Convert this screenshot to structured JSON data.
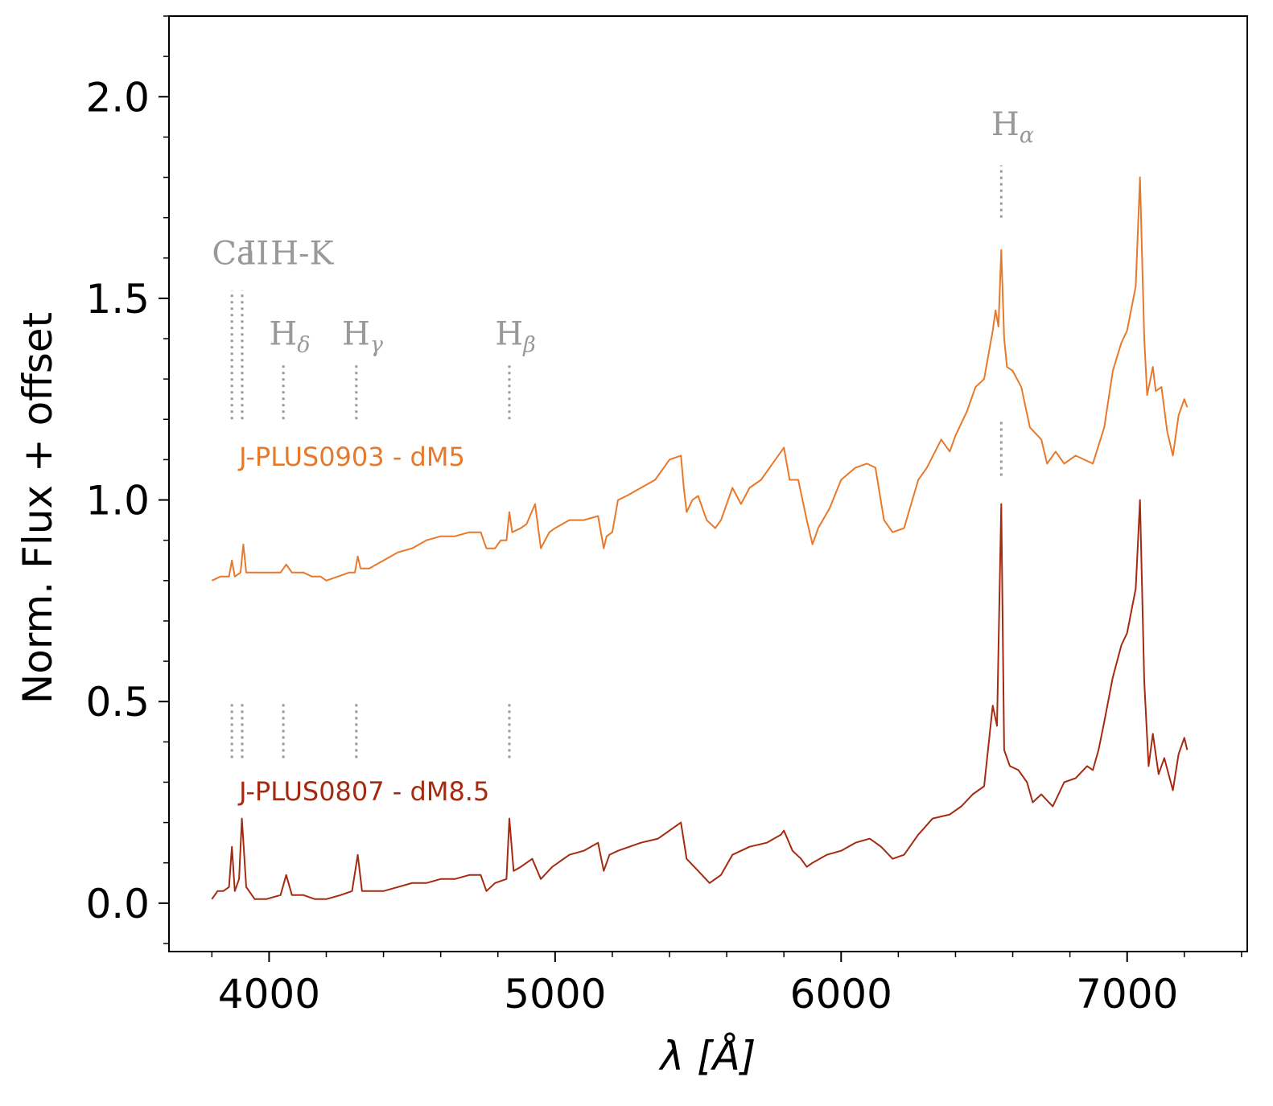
{
  "chart_data": {
    "type": "line",
    "xlabel": "λ [Å]",
    "ylabel": "Norm. Flux + offset",
    "xlim": [
      3650,
      7420
    ],
    "ylim": [
      -0.12,
      2.2
    ],
    "x_ticks": [
      4000,
      5000,
      6000,
      7000
    ],
    "x_tick_labels": [
      "4000",
      "5000",
      "6000",
      "7000"
    ],
    "x_minor_step": 200,
    "y_ticks": [
      0.0,
      0.5,
      1.0,
      1.5,
      2.0
    ],
    "y_tick_labels": [
      "0.0",
      "0.5",
      "1.0",
      "1.5",
      "2.0"
    ],
    "y_minor_step": 0.1,
    "series": [
      {
        "name": "J-PLUS0903 - dM5",
        "color": "#e8782a",
        "points": [
          [
            3800,
            0.8
          ],
          [
            3830,
            0.81
          ],
          [
            3860,
            0.81
          ],
          [
            3870,
            0.85
          ],
          [
            3880,
            0.81
          ],
          [
            3900,
            0.82
          ],
          [
            3910,
            0.89
          ],
          [
            3920,
            0.82
          ],
          [
            3950,
            0.82
          ],
          [
            4000,
            0.82
          ],
          [
            4040,
            0.82
          ],
          [
            4060,
            0.84
          ],
          [
            4080,
            0.82
          ],
          [
            4120,
            0.82
          ],
          [
            4150,
            0.81
          ],
          [
            4180,
            0.81
          ],
          [
            4200,
            0.8
          ],
          [
            4240,
            0.81
          ],
          [
            4280,
            0.82
          ],
          [
            4300,
            0.82
          ],
          [
            4310,
            0.86
          ],
          [
            4320,
            0.83
          ],
          [
            4350,
            0.83
          ],
          [
            4400,
            0.85
          ],
          [
            4450,
            0.87
          ],
          [
            4500,
            0.88
          ],
          [
            4550,
            0.9
          ],
          [
            4600,
            0.91
          ],
          [
            4650,
            0.91
          ],
          [
            4700,
            0.92
          ],
          [
            4740,
            0.92
          ],
          [
            4760,
            0.88
          ],
          [
            4790,
            0.88
          ],
          [
            4810,
            0.9
          ],
          [
            4830,
            0.9
          ],
          [
            4840,
            0.97
          ],
          [
            4850,
            0.92
          ],
          [
            4880,
            0.93
          ],
          [
            4900,
            0.94
          ],
          [
            4930,
            0.99
          ],
          [
            4950,
            0.88
          ],
          [
            4980,
            0.92
          ],
          [
            5000,
            0.93
          ],
          [
            5050,
            0.95
          ],
          [
            5100,
            0.95
          ],
          [
            5150,
            0.96
          ],
          [
            5170,
            0.88
          ],
          [
            5180,
            0.91
          ],
          [
            5200,
            0.92
          ],
          [
            5220,
            1.0
          ],
          [
            5250,
            1.01
          ],
          [
            5300,
            1.03
          ],
          [
            5350,
            1.05
          ],
          [
            5380,
            1.08
          ],
          [
            5400,
            1.1
          ],
          [
            5440,
            1.11
          ],
          [
            5450,
            1.03
          ],
          [
            5460,
            0.97
          ],
          [
            5480,
            1.0
          ],
          [
            5500,
            1.01
          ],
          [
            5530,
            0.95
          ],
          [
            5560,
            0.93
          ],
          [
            5580,
            0.95
          ],
          [
            5620,
            1.03
          ],
          [
            5650,
            0.99
          ],
          [
            5680,
            1.03
          ],
          [
            5720,
            1.05
          ],
          [
            5760,
            1.09
          ],
          [
            5800,
            1.13
          ],
          [
            5820,
            1.05
          ],
          [
            5850,
            1.05
          ],
          [
            5880,
            0.95
          ],
          [
            5900,
            0.89
          ],
          [
            5920,
            0.93
          ],
          [
            5960,
            0.98
          ],
          [
            6000,
            1.05
          ],
          [
            6050,
            1.08
          ],
          [
            6090,
            1.09
          ],
          [
            6120,
            1.08
          ],
          [
            6150,
            0.95
          ],
          [
            6180,
            0.92
          ],
          [
            6220,
            0.93
          ],
          [
            6270,
            1.05
          ],
          [
            6300,
            1.08
          ],
          [
            6350,
            1.15
          ],
          [
            6380,
            1.12
          ],
          [
            6400,
            1.16
          ],
          [
            6440,
            1.22
          ],
          [
            6470,
            1.28
          ],
          [
            6500,
            1.3
          ],
          [
            6530,
            1.42
          ],
          [
            6540,
            1.47
          ],
          [
            6550,
            1.43
          ],
          [
            6560,
            1.62
          ],
          [
            6570,
            1.4
          ],
          [
            6580,
            1.33
          ],
          [
            6600,
            1.32
          ],
          [
            6630,
            1.28
          ],
          [
            6660,
            1.18
          ],
          [
            6700,
            1.15
          ],
          [
            6720,
            1.09
          ],
          [
            6750,
            1.12
          ],
          [
            6780,
            1.09
          ],
          [
            6820,
            1.11
          ],
          [
            6850,
            1.1
          ],
          [
            6880,
            1.09
          ],
          [
            6920,
            1.18
          ],
          [
            6950,
            1.32
          ],
          [
            6980,
            1.39
          ],
          [
            7000,
            1.42
          ],
          [
            7030,
            1.53
          ],
          [
            7045,
            1.8
          ],
          [
            7060,
            1.4
          ],
          [
            7070,
            1.26
          ],
          [
            7090,
            1.33
          ],
          [
            7100,
            1.27
          ],
          [
            7120,
            1.28
          ],
          [
            7140,
            1.17
          ],
          [
            7160,
            1.11
          ],
          [
            7180,
            1.21
          ],
          [
            7200,
            1.25
          ],
          [
            7210,
            1.23
          ]
        ]
      },
      {
        "name": "J-PLUS0807 - dM8.5",
        "color": "#a52a10",
        "points": [
          [
            3800,
            0.01
          ],
          [
            3820,
            0.03
          ],
          [
            3840,
            0.03
          ],
          [
            3860,
            0.04
          ],
          [
            3870,
            0.14
          ],
          [
            3880,
            0.03
          ],
          [
            3895,
            0.06
          ],
          [
            3905,
            0.21
          ],
          [
            3920,
            0.04
          ],
          [
            3950,
            0.01
          ],
          [
            3990,
            0.01
          ],
          [
            4040,
            0.02
          ],
          [
            4060,
            0.07
          ],
          [
            4080,
            0.02
          ],
          [
            4120,
            0.02
          ],
          [
            4160,
            0.01
          ],
          [
            4200,
            0.01
          ],
          [
            4250,
            0.02
          ],
          [
            4290,
            0.03
          ],
          [
            4310,
            0.12
          ],
          [
            4325,
            0.03
          ],
          [
            4360,
            0.03
          ],
          [
            4400,
            0.03
          ],
          [
            4450,
            0.04
          ],
          [
            4500,
            0.05
          ],
          [
            4550,
            0.05
          ],
          [
            4600,
            0.06
          ],
          [
            4650,
            0.06
          ],
          [
            4700,
            0.07
          ],
          [
            4740,
            0.07
          ],
          [
            4760,
            0.03
          ],
          [
            4790,
            0.05
          ],
          [
            4830,
            0.06
          ],
          [
            4840,
            0.21
          ],
          [
            4855,
            0.08
          ],
          [
            4880,
            0.09
          ],
          [
            4920,
            0.11
          ],
          [
            4950,
            0.06
          ],
          [
            4990,
            0.09
          ],
          [
            5050,
            0.12
          ],
          [
            5100,
            0.13
          ],
          [
            5150,
            0.15
          ],
          [
            5170,
            0.08
          ],
          [
            5190,
            0.12
          ],
          [
            5220,
            0.13
          ],
          [
            5300,
            0.15
          ],
          [
            5360,
            0.16
          ],
          [
            5400,
            0.18
          ],
          [
            5440,
            0.2
          ],
          [
            5460,
            0.11
          ],
          [
            5500,
            0.08
          ],
          [
            5540,
            0.05
          ],
          [
            5580,
            0.07
          ],
          [
            5620,
            0.12
          ],
          [
            5680,
            0.14
          ],
          [
            5740,
            0.15
          ],
          [
            5790,
            0.17
          ],
          [
            5800,
            0.18
          ],
          [
            5830,
            0.13
          ],
          [
            5860,
            0.11
          ],
          [
            5880,
            0.09
          ],
          [
            5900,
            0.1
          ],
          [
            5950,
            0.12
          ],
          [
            6000,
            0.13
          ],
          [
            6050,
            0.15
          ],
          [
            6100,
            0.16
          ],
          [
            6140,
            0.14
          ],
          [
            6180,
            0.11
          ],
          [
            6220,
            0.12
          ],
          [
            6270,
            0.17
          ],
          [
            6320,
            0.21
          ],
          [
            6380,
            0.22
          ],
          [
            6420,
            0.24
          ],
          [
            6460,
            0.27
          ],
          [
            6500,
            0.29
          ],
          [
            6530,
            0.49
          ],
          [
            6545,
            0.44
          ],
          [
            6560,
            0.99
          ],
          [
            6570,
            0.38
          ],
          [
            6590,
            0.34
          ],
          [
            6620,
            0.33
          ],
          [
            6650,
            0.3
          ],
          [
            6670,
            0.25
          ],
          [
            6700,
            0.27
          ],
          [
            6740,
            0.24
          ],
          [
            6780,
            0.3
          ],
          [
            6820,
            0.31
          ],
          [
            6860,
            0.34
          ],
          [
            6880,
            0.33
          ],
          [
            6900,
            0.38
          ],
          [
            6920,
            0.45
          ],
          [
            6950,
            0.56
          ],
          [
            6980,
            0.64
          ],
          [
            7000,
            0.67
          ],
          [
            7030,
            0.78
          ],
          [
            7045,
            1.0
          ],
          [
            7060,
            0.55
          ],
          [
            7075,
            0.34
          ],
          [
            7090,
            0.42
          ],
          [
            7110,
            0.32
          ],
          [
            7130,
            0.36
          ],
          [
            7160,
            0.28
          ],
          [
            7180,
            0.37
          ],
          [
            7200,
            0.41
          ],
          [
            7210,
            0.38
          ]
        ]
      }
    ],
    "annotations": [
      {
        "text": "Ca",
        "sub": "",
        "x": 3800,
        "y": 1.585
      },
      {
        "text": "II",
        "sub": "",
        "x": 3910,
        "y": 1.585
      },
      {
        "text": "H-K",
        "sub": "",
        "x": 4005,
        "y": 1.585
      },
      {
        "text": "H",
        "sub": "δ",
        "x": 4000,
        "y": 1.385
      },
      {
        "text": "H",
        "sub": "γ",
        "x": 4255,
        "y": 1.385
      },
      {
        "text": "H",
        "sub": "β",
        "x": 4790,
        "y": 1.385
      },
      {
        "text": "H",
        "sub": "α",
        "x": 6525,
        "y": 1.905
      }
    ],
    "line_markers_upper": [
      {
        "x": 3870,
        "y0": 1.2,
        "y1": 1.52
      },
      {
        "x": 3906,
        "y0": 1.2,
        "y1": 1.52
      },
      {
        "x": 4050,
        "y0": 1.2,
        "y1": 1.34
      },
      {
        "x": 4305,
        "y0": 1.2,
        "y1": 1.34
      },
      {
        "x": 4840,
        "y0": 1.2,
        "y1": 1.34
      },
      {
        "x": 6560,
        "y0": 1.7,
        "y1": 1.83
      },
      {
        "x": 6560,
        "y0": 1.06,
        "y1": 1.2
      }
    ],
    "line_markers_lower": [
      {
        "x": 3870,
        "y0": 0.36,
        "y1": 0.5
      },
      {
        "x": 3906,
        "y0": 0.36,
        "y1": 0.5
      },
      {
        "x": 4050,
        "y0": 0.36,
        "y1": 0.5
      },
      {
        "x": 4305,
        "y0": 0.36,
        "y1": 0.5
      },
      {
        "x": 4840,
        "y0": 0.36,
        "y1": 0.5
      }
    ],
    "series_labels": [
      {
        "text": "J-PLUS0903 - dM5",
        "x": 3895,
        "y": 1.085,
        "color": "#e8782a"
      },
      {
        "text": "J-PLUS0807 - dM8.5",
        "x": 3895,
        "y": 0.255,
        "color": "#a52a10"
      }
    ]
  }
}
